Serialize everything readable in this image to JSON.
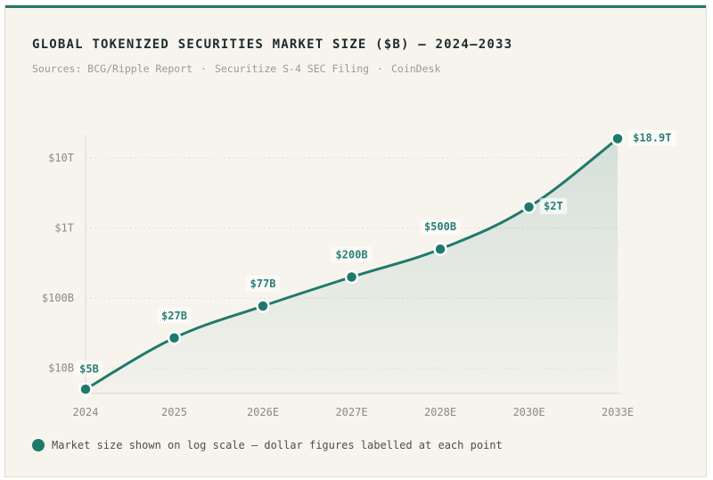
{
  "header": {
    "title": "GLOBAL TOKENIZED SECURITIES MARKET SIZE ($B) — 2024–2033",
    "sources": [
      "Sources: BCG/Ripple Report",
      "Securitize S-4 SEC Filing",
      "CoinDesk"
    ],
    "source_separator": "·"
  },
  "legend": {
    "text": "Market size shown on log scale — dollar figures labelled at each point"
  },
  "colors": {
    "accent": "#1f7a6a",
    "background": "#f7f4ee",
    "axis_text": "#8a8a84",
    "label_text": "#2a7f72"
  },
  "chart_data": {
    "type": "line",
    "title": "GLOBAL TOKENIZED SECURITIES MARKET SIZE ($B) — 2024–2033",
    "scale": "log",
    "xlabel": "",
    "ylabel": "",
    "categories": [
      "2024",
      "2025",
      "2026E",
      "2027E",
      "2028E",
      "2030E",
      "2033E"
    ],
    "values": [
      5,
      27,
      77,
      200,
      500,
      2000,
      18900
    ],
    "data_labels": [
      "$5B",
      "$27B",
      "$77B",
      "$200B",
      "$500B",
      "$2T",
      "$18.9T"
    ],
    "y_ticks": [
      {
        "value": 10,
        "label": "$10B"
      },
      {
        "value": 100,
        "label": "$100B"
      },
      {
        "value": 1000,
        "label": "$1T"
      },
      {
        "value": 10000,
        "label": "$10T"
      }
    ],
    "ylim": [
      4.35,
      21500
    ],
    "grid": true,
    "area_fill": true
  }
}
